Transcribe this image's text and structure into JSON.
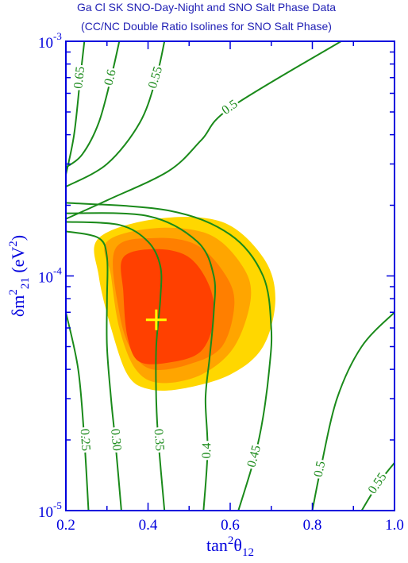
{
  "chart_data": {
    "type": "contour",
    "title": "Ga Cl SK SNO-Day-Night and SNO Salt Phase Data",
    "subtitle": "(CC/NC Double Ratio Isolines for SNO Salt Phase)",
    "xlabel": [
      {
        "text": "tan"
      },
      {
        "text": "2",
        "pos": "sup"
      },
      {
        "text": "θ"
      },
      {
        "text": "12",
        "pos": "sub"
      }
    ],
    "ylabel": [
      {
        "text": "δm"
      },
      {
        "text": "2",
        "pos": "sup"
      },
      {
        "text": "21",
        "pos": "sub"
      },
      {
        "text": " (eV"
      },
      {
        "text": "2",
        "pos": "sup"
      },
      {
        "text": ")"
      }
    ],
    "xlim": [
      0.2,
      1.0
    ],
    "ylim": [
      1e-05,
      0.001
    ],
    "yscale": "log",
    "xticks": [
      0.2,
      0.4,
      0.6,
      0.8,
      {
        "value": 1,
        "label": "1.0"
      }
    ],
    "xminorticks": [
      0.3,
      0.5,
      0.7,
      0.9
    ],
    "yticks": [
      {
        "value": 1e-05,
        "label": "10",
        "exponent": "-5"
      },
      {
        "value": 0.0001,
        "label": "10",
        "exponent": "-4"
      },
      {
        "value": 0.001,
        "label": "10",
        "exponent": "-3"
      }
    ],
    "yminorticks": [
      2e-05,
      3e-05,
      4e-05,
      5e-05,
      6e-05,
      7e-05,
      8e-05,
      9e-05,
      0.0002,
      0.0003,
      0.0004,
      0.0005,
      0.0006,
      0.0007,
      0.0008,
      0.0009
    ],
    "axis_color": "#0000dd",
    "contour_color": "#1a8a1a",
    "regions": [
      {
        "color": "#ffd700",
        "x": [
          0.28,
          0.42,
          0.58,
          0.68,
          0.71,
          0.68,
          0.6,
          0.48,
          0.4,
          0.35,
          0.31,
          0.28
        ],
        "y": [
          0.000145,
          0.000175,
          0.00017,
          0.00012,
          8e-05,
          5e-05,
          3.8e-05,
          3.3e-05,
          3.3e-05,
          3.8e-05,
          6e-05,
          0.0001
        ]
      },
      {
        "color": "#ffa500",
        "x": [
          0.3,
          0.42,
          0.55,
          0.63,
          0.65,
          0.61,
          0.53,
          0.43,
          0.37,
          0.33,
          0.31
        ],
        "y": [
          0.00014,
          0.00016,
          0.00015,
          0.00011,
          8e-05,
          5e-05,
          3.8e-05,
          3.5e-05,
          4e-05,
          6e-05,
          0.0001
        ]
      },
      {
        "color": "#ff7f00",
        "x": [
          0.32,
          0.42,
          0.52,
          0.59,
          0.61,
          0.58,
          0.5,
          0.41,
          0.36,
          0.33
        ],
        "y": [
          0.00013,
          0.000145,
          0.000135,
          0.0001,
          7.5e-05,
          5e-05,
          4.2e-05,
          4e-05,
          4.8e-05,
          7e-05
        ]
      },
      {
        "color": "#ff4000",
        "x": [
          0.34,
          0.42,
          0.5,
          0.55,
          0.56,
          0.53,
          0.46,
          0.38,
          0.35,
          0.34
        ],
        "y": [
          0.00012,
          0.00013,
          0.00012,
          9e-05,
          6.5e-05,
          4.8e-05,
          4.3e-05,
          4.3e-05,
          5.5e-05,
          8.5e-05
        ]
      }
    ],
    "best_fit": {
      "x": 0.42,
      "y": 6.5e-05,
      "color": "#ffff00"
    },
    "contours": [
      {
        "name": "0.65",
        "x": [
          0.2,
          0.22,
          0.235,
          0.245
        ],
        "y": [
          0.00027,
          0.0004,
          0.0007,
          0.001
        ]
      },
      {
        "name": "0.6",
        "x": [
          0.2,
          0.24,
          0.28,
          0.31,
          0.33
        ],
        "y": [
          0.00029,
          0.00033,
          0.00045,
          0.0007,
          0.001
        ]
      },
      {
        "name": "0.55",
        "x": [
          0.2,
          0.3,
          0.38,
          0.42,
          0.44
        ],
        "y": [
          0.00024,
          0.0003,
          0.00045,
          0.0007,
          0.001
        ]
      },
      {
        "name": "0.5",
        "x": [
          0.2,
          0.3,
          0.45,
          0.53,
          0.6,
          0.87
        ],
        "y": [
          0.000175,
          0.00021,
          0.00028,
          0.00038,
          0.00052,
          0.001
        ]
      },
      {
        "name": "0.25",
        "x": [
          0.2,
          0.23,
          0.245,
          0.255
        ],
        "y": [
          7e-05,
          4e-05,
          2e-05,
          1e-05
        ]
      },
      {
        "name": "0.30",
        "x": [
          0.2,
          0.28,
          0.3,
          0.3,
          0.3,
          0.31,
          0.32,
          0.335
        ],
        "y": [
          0.000155,
          0.000145,
          0.00012,
          8e-05,
          5e-05,
          3e-05,
          2e-05,
          1e-05
        ]
      },
      {
        "name": "0.35",
        "x": [
          0.2,
          0.33,
          0.4,
          0.43,
          0.43,
          0.42,
          0.42,
          0.425,
          0.44
        ],
        "y": [
          0.00017,
          0.000165,
          0.00014,
          0.00011,
          8e-05,
          5e-05,
          3e-05,
          2e-05,
          1e-05
        ]
      },
      {
        "name": "0.4",
        "x": [
          0.2,
          0.4,
          0.52,
          0.56,
          0.56,
          0.55,
          0.54,
          0.545,
          0.535
        ],
        "y": [
          0.000185,
          0.00018,
          0.00014,
          0.0001,
          7e-05,
          4.5e-05,
          3e-05,
          1.8e-05,
          1e-05
        ]
      },
      {
        "name": "0.45",
        "x": [
          0.2,
          0.45,
          0.6,
          0.68,
          0.7,
          0.695,
          0.68,
          0.66,
          0.62
        ],
        "y": [
          0.000205,
          0.00019,
          0.00015,
          0.0001,
          6e-05,
          4e-05,
          2.5e-05,
          1.7e-05,
          1e-05
        ]
      },
      {
        "name": "0.5",
        "x": [
          1.0,
          0.92,
          0.86,
          0.82,
          0.8
        ],
        "y": [
          7e-05,
          5e-05,
          3e-05,
          1.5e-05,
          1e-05
        ]
      },
      {
        "name": "0.55",
        "x": [
          1.0,
          0.96,
          0.92
        ],
        "y": [
          1.6e-05,
          1.3e-05,
          1e-05
        ]
      }
    ]
  }
}
